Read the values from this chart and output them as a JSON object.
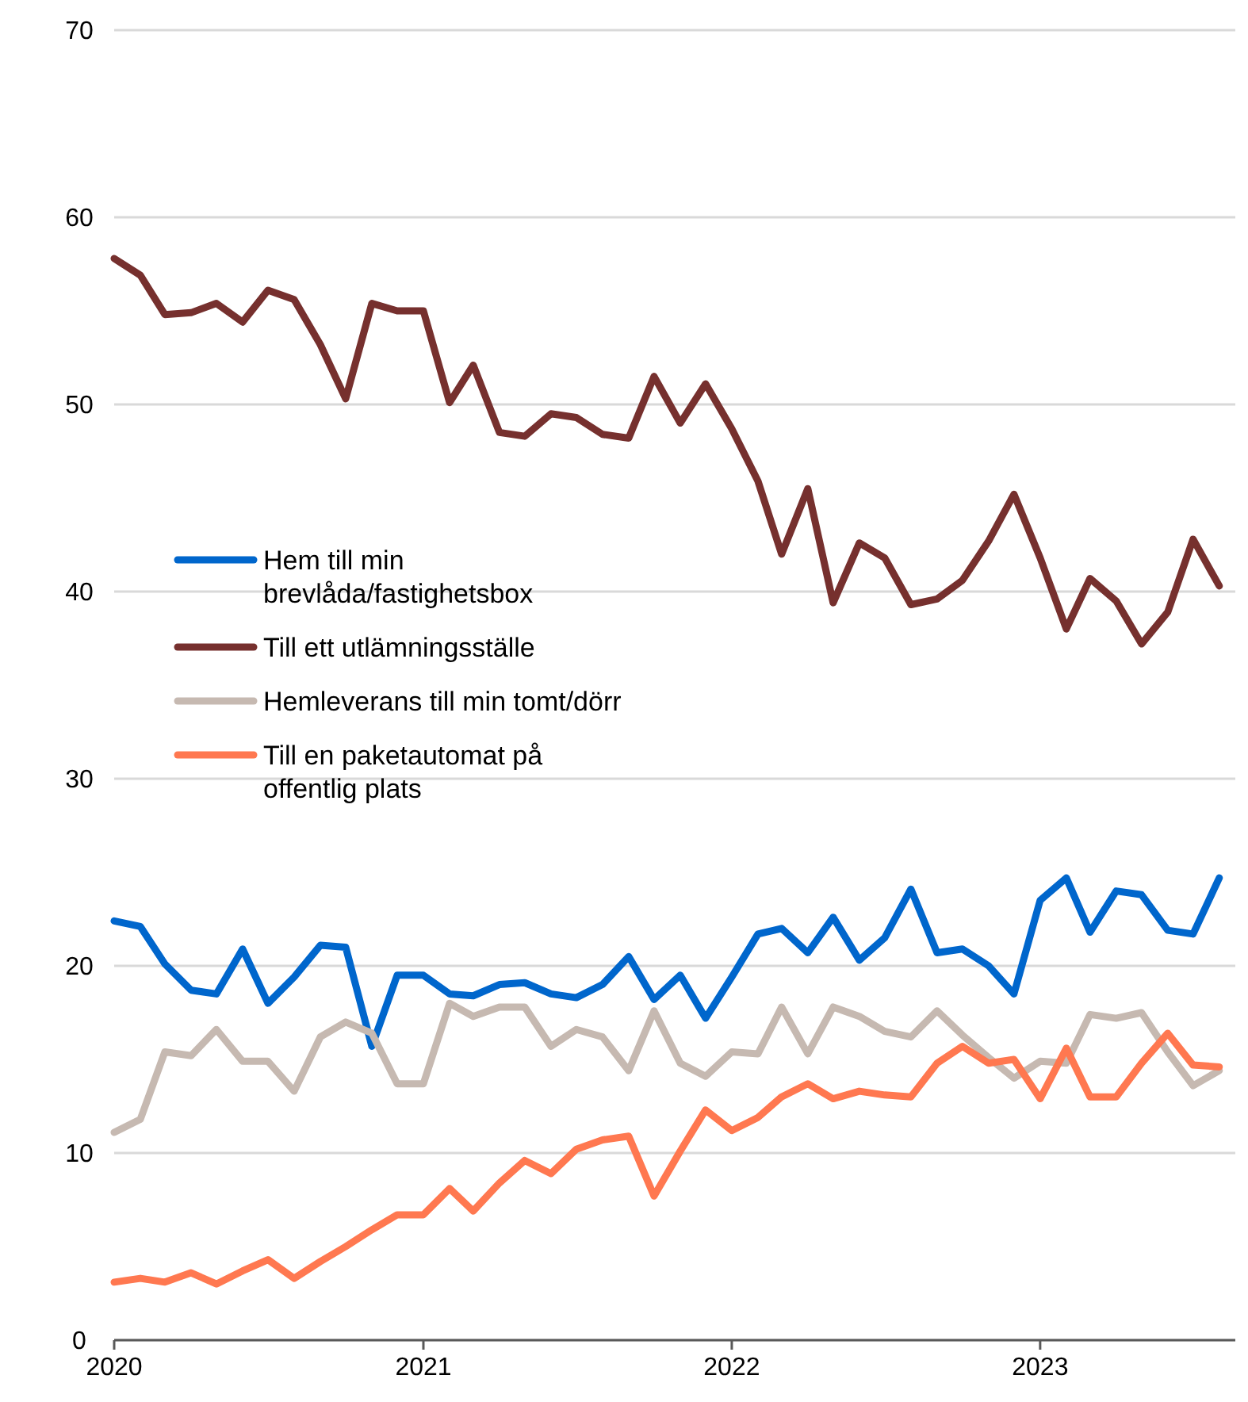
{
  "chart_data": {
    "type": "line",
    "x": [
      "2020-01",
      "2020-02",
      "2020-03",
      "2020-04",
      "2020-05",
      "2020-06",
      "2020-07",
      "2020-08",
      "2020-09",
      "2020-10",
      "2020-11",
      "2020-12",
      "2021-01",
      "2021-02",
      "2021-03",
      "2021-04",
      "2021-05",
      "2021-06",
      "2021-07",
      "2021-08",
      "2021-09",
      "2021-10",
      "2021-11",
      "2021-12",
      "2022-01",
      "2022-02",
      "2022-03",
      "2022-04",
      "2022-05",
      "2022-06",
      "2022-07",
      "2022-08",
      "2022-09",
      "2022-10",
      "2022-11",
      "2022-12",
      "2023-01",
      "2023-02",
      "2023-03",
      "2023-04",
      "2023-05",
      "2023-06",
      "2023-07",
      "2023-08"
    ],
    "series": [
      {
        "name": "Hem till min brevlåda/fastighetsbox",
        "color": "#0066cc",
        "values": [
          22.4,
          22.1,
          20.1,
          18.7,
          18.5,
          20.9,
          18.0,
          19.4,
          21.1,
          21.0,
          15.7,
          19.5,
          19.5,
          18.5,
          18.4,
          19.0,
          19.1,
          18.5,
          18.3,
          19.0,
          20.5,
          18.2,
          19.5,
          17.2,
          19.4,
          21.7,
          22.0,
          20.7,
          22.6,
          20.3,
          21.5,
          24.1,
          20.7,
          20.9,
          20.0,
          18.5,
          23.5,
          24.7,
          21.8,
          24.0,
          23.8,
          21.9,
          21.7,
          24.7
        ]
      },
      {
        "name": "Till ett utlämningsställe",
        "color": "#76302e",
        "values": [
          57.8,
          56.9,
          54.8,
          54.9,
          55.4,
          54.4,
          56.1,
          55.6,
          53.2,
          50.3,
          55.4,
          55.0,
          55.0,
          50.1,
          52.1,
          48.5,
          48.3,
          49.5,
          49.3,
          48.4,
          48.2,
          51.5,
          49.0,
          51.1,
          48.7,
          45.9,
          42.0,
          45.5,
          39.4,
          42.6,
          41.8,
          39.3,
          39.6,
          40.6,
          42.7,
          45.2,
          41.8,
          38.0,
          40.7,
          39.5,
          37.2,
          38.9,
          42.8,
          40.3
        ]
      },
      {
        "name": "Hemleverans till min tomt/dörr",
        "color": "#c6b9b1",
        "values": [
          11.1,
          11.8,
          15.4,
          15.2,
          16.6,
          14.9,
          14.9,
          13.3,
          16.2,
          17.0,
          16.4,
          13.7,
          13.7,
          18.0,
          17.3,
          17.8,
          17.8,
          15.7,
          16.6,
          16.2,
          14.4,
          17.6,
          14.8,
          14.1,
          15.4,
          15.3,
          17.8,
          15.3,
          17.8,
          17.3,
          16.5,
          16.2,
          17.6,
          16.3,
          15.1,
          14.0,
          14.9,
          14.8,
          17.4,
          17.2,
          17.5,
          15.4,
          13.6,
          14.4
        ]
      },
      {
        "name": "Till en paketautomat på offentlig plats",
        "color": "#ff7850",
        "values": [
          3.1,
          3.3,
          3.1,
          3.6,
          3.0,
          3.7,
          4.3,
          3.3,
          4.2,
          5.0,
          5.9,
          6.7,
          6.7,
          8.1,
          6.9,
          8.4,
          9.6,
          8.9,
          10.2,
          10.7,
          10.9,
          7.7,
          10.1,
          12.3,
          11.2,
          11.9,
          13.0,
          13.7,
          12.9,
          13.3,
          13.1,
          13.0,
          14.8,
          15.7,
          14.8,
          15.0,
          12.9,
          15.6,
          13.0,
          13.0,
          14.8,
          16.4,
          14.7,
          14.6
        ]
      }
    ],
    "xlim": [
      "2020-01-01",
      "2023-08-20"
    ],
    "xticks": [
      "2020",
      "2021",
      "2022",
      "2023"
    ],
    "ylim": [
      0,
      70
    ],
    "yticks": [
      0,
      10,
      20,
      30,
      40,
      50,
      60,
      70
    ],
    "grid": "y",
    "legend": "left",
    "marker": "none",
    "line_style": "solid"
  }
}
